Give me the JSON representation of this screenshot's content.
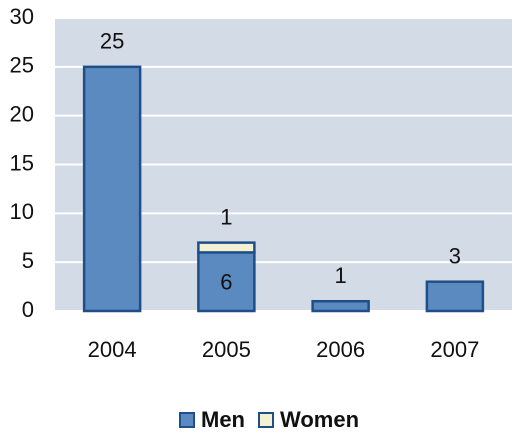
{
  "chart_data": {
    "type": "stacked-bar",
    "categories": [
      "2004",
      "2005",
      "2006",
      "2007"
    ],
    "series": [
      {
        "name": "Men",
        "color": "#5b8ac0",
        "values": [
          25,
          6,
          1,
          3
        ]
      },
      {
        "name": "Women",
        "color": "#f3f1d2",
        "values": [
          null,
          1,
          null,
          null
        ]
      }
    ],
    "ylim": [
      0,
      30
    ],
    "yticks": [
      0,
      5,
      10,
      15,
      20,
      25,
      30
    ],
    "grid": true
  }
}
